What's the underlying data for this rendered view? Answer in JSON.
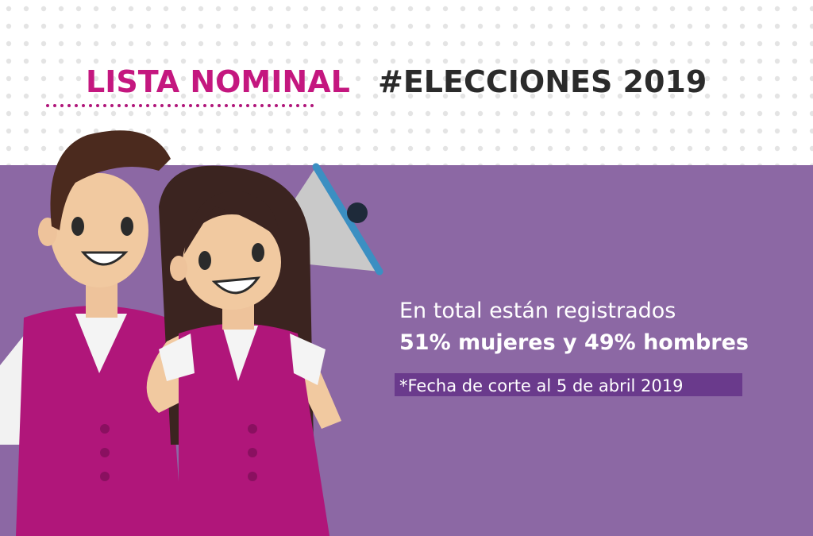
{
  "header": {
    "title_highlight": "LISTA NOMINAL",
    "title_rest": "#ELECCIONES 2019"
  },
  "body": {
    "intro": "En total están registrados",
    "stat": "51% mujeres y 49% hombres",
    "note": "*Fecha de corte al 5 de abril 2019"
  }
}
